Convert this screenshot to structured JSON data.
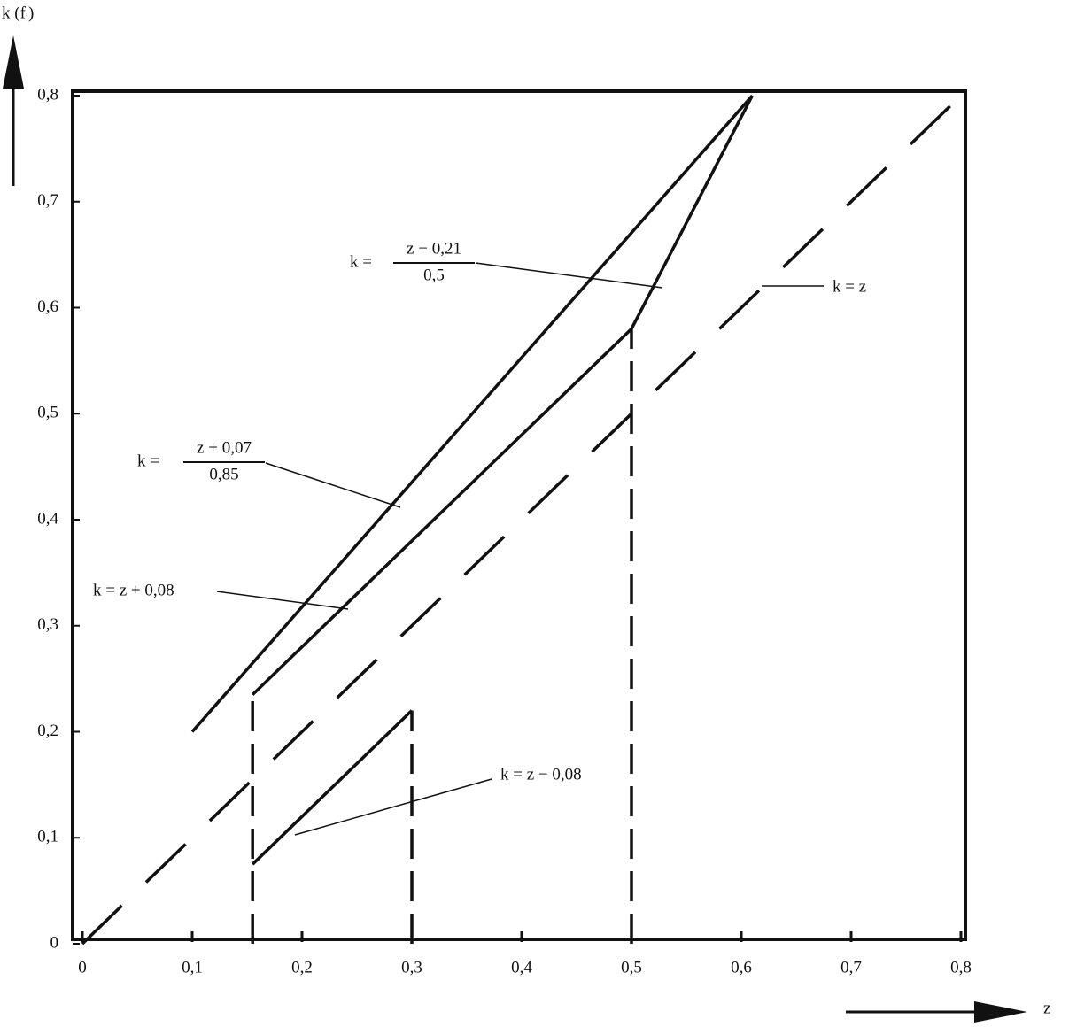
{
  "chart_data": {
    "type": "line",
    "xlabel": "z",
    "ylabel": "k (fᵢ)",
    "xlim": [
      0,
      0.8
    ],
    "ylim": [
      0,
      0.8
    ],
    "xticks": [
      0,
      {
        "value": 0.1,
        "label": "0,1"
      },
      {
        "value": 0.2,
        "label": "0,2"
      },
      {
        "value": 0.3,
        "label": "0,3"
      },
      {
        "value": 0.4,
        "label": "0,4"
      },
      {
        "value": 0.5,
        "label": "0,5"
      },
      {
        "value": 0.6,
        "label": "0,6"
      },
      {
        "value": 0.7,
        "label": "0,7"
      },
      {
        "value": 0.8,
        "label": "0,8"
      }
    ],
    "yticks": [
      0,
      {
        "value": 0.1,
        "label": "0,1"
      },
      {
        "value": 0.2,
        "label": "0,2"
      },
      {
        "value": 0.3,
        "label": "0,3"
      },
      {
        "value": 0.4,
        "label": "0,4"
      },
      {
        "value": 0.5,
        "label": "0,5"
      },
      {
        "value": 0.6,
        "label": "0,6"
      },
      {
        "value": 0.7,
        "label": "0,7"
      },
      {
        "value": 0.8,
        "label": "0,8"
      }
    ],
    "series": [
      {
        "color": "#111111",
        "style": "dashed",
        "x": [
          0,
          0.8
        ],
        "values": [
          0,
          0.8
        ]
      },
      {
        "color": "#111111",
        "style": "solid",
        "x": [
          0.1,
          0.61
        ],
        "values": [
          0.2,
          0.8
        ]
      },
      {
        "color": "#111111",
        "style": "solid",
        "x": [
          0.155,
          0.5
        ],
        "values": [
          0.235,
          0.58
        ]
      },
      {
        "color": "#111111",
        "style": "solid",
        "x": [
          0.5,
          0.61
        ],
        "values": [
          0.58,
          0.8
        ]
      },
      {
        "color": "#111111",
        "style": "solid",
        "x": [
          0.155,
          0.3
        ],
        "values": [
          0.075,
          0.22
        ]
      },
      {
        "color": "#111111",
        "style": "dashed-short",
        "x": [
          0.155,
          0.155
        ],
        "values": [
          0,
          0.235
        ]
      },
      {
        "color": "#111111",
        "style": "dashed-short",
        "x": [
          0.3,
          0.3
        ],
        "values": [
          0,
          0.22
        ]
      },
      {
        "color": "#111111",
        "style": "dashed-short",
        "x": [
          0.5,
          0.5
        ],
        "values": [
          0,
          0.58
        ]
      }
    ],
    "annotations": [
      {
        "text": "k =",
        "numerator": "z − 0,21",
        "denominator": "0,5"
      },
      {
        "text": "k = z"
      },
      {
        "text": "k =",
        "numerator": "z + 0,07",
        "denominator": "0,85"
      },
      {
        "text": "k = z + 0,08"
      },
      {
        "text": "k = z − 0,08"
      }
    ]
  }
}
